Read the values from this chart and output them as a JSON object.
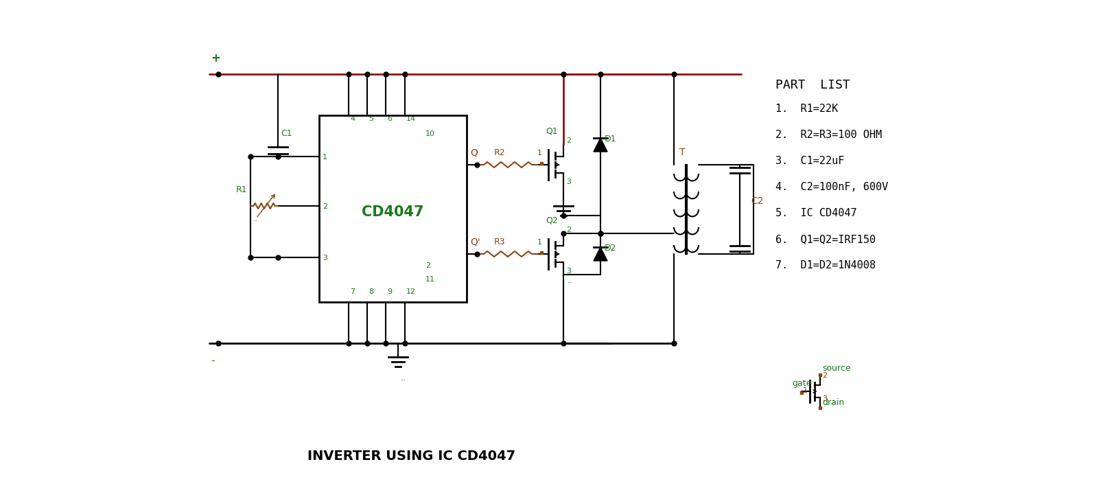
{
  "title": "INVERTER USING IC CD4047",
  "bg_color": "#FFFFFF",
  "wc": "#000000",
  "vc": "#8B1414",
  "rc": "#8B4513",
  "gc": "#1a7a1a",
  "bc": "#8B4513",
  "part_list_title": "PART  LIST",
  "part_list": [
    "1.  R1=22K",
    "2.  R2=R3=100 OHM",
    "3.  C1=22uF",
    "4.  C2=100nF, 600V",
    "5.  IC CD4047",
    "6.  Q1=Q2=IRF150",
    "7.  D1=D2=1N4008"
  ],
  "plus_label": "+",
  "minus_label": "-",
  "ic_label": "CD4047"
}
